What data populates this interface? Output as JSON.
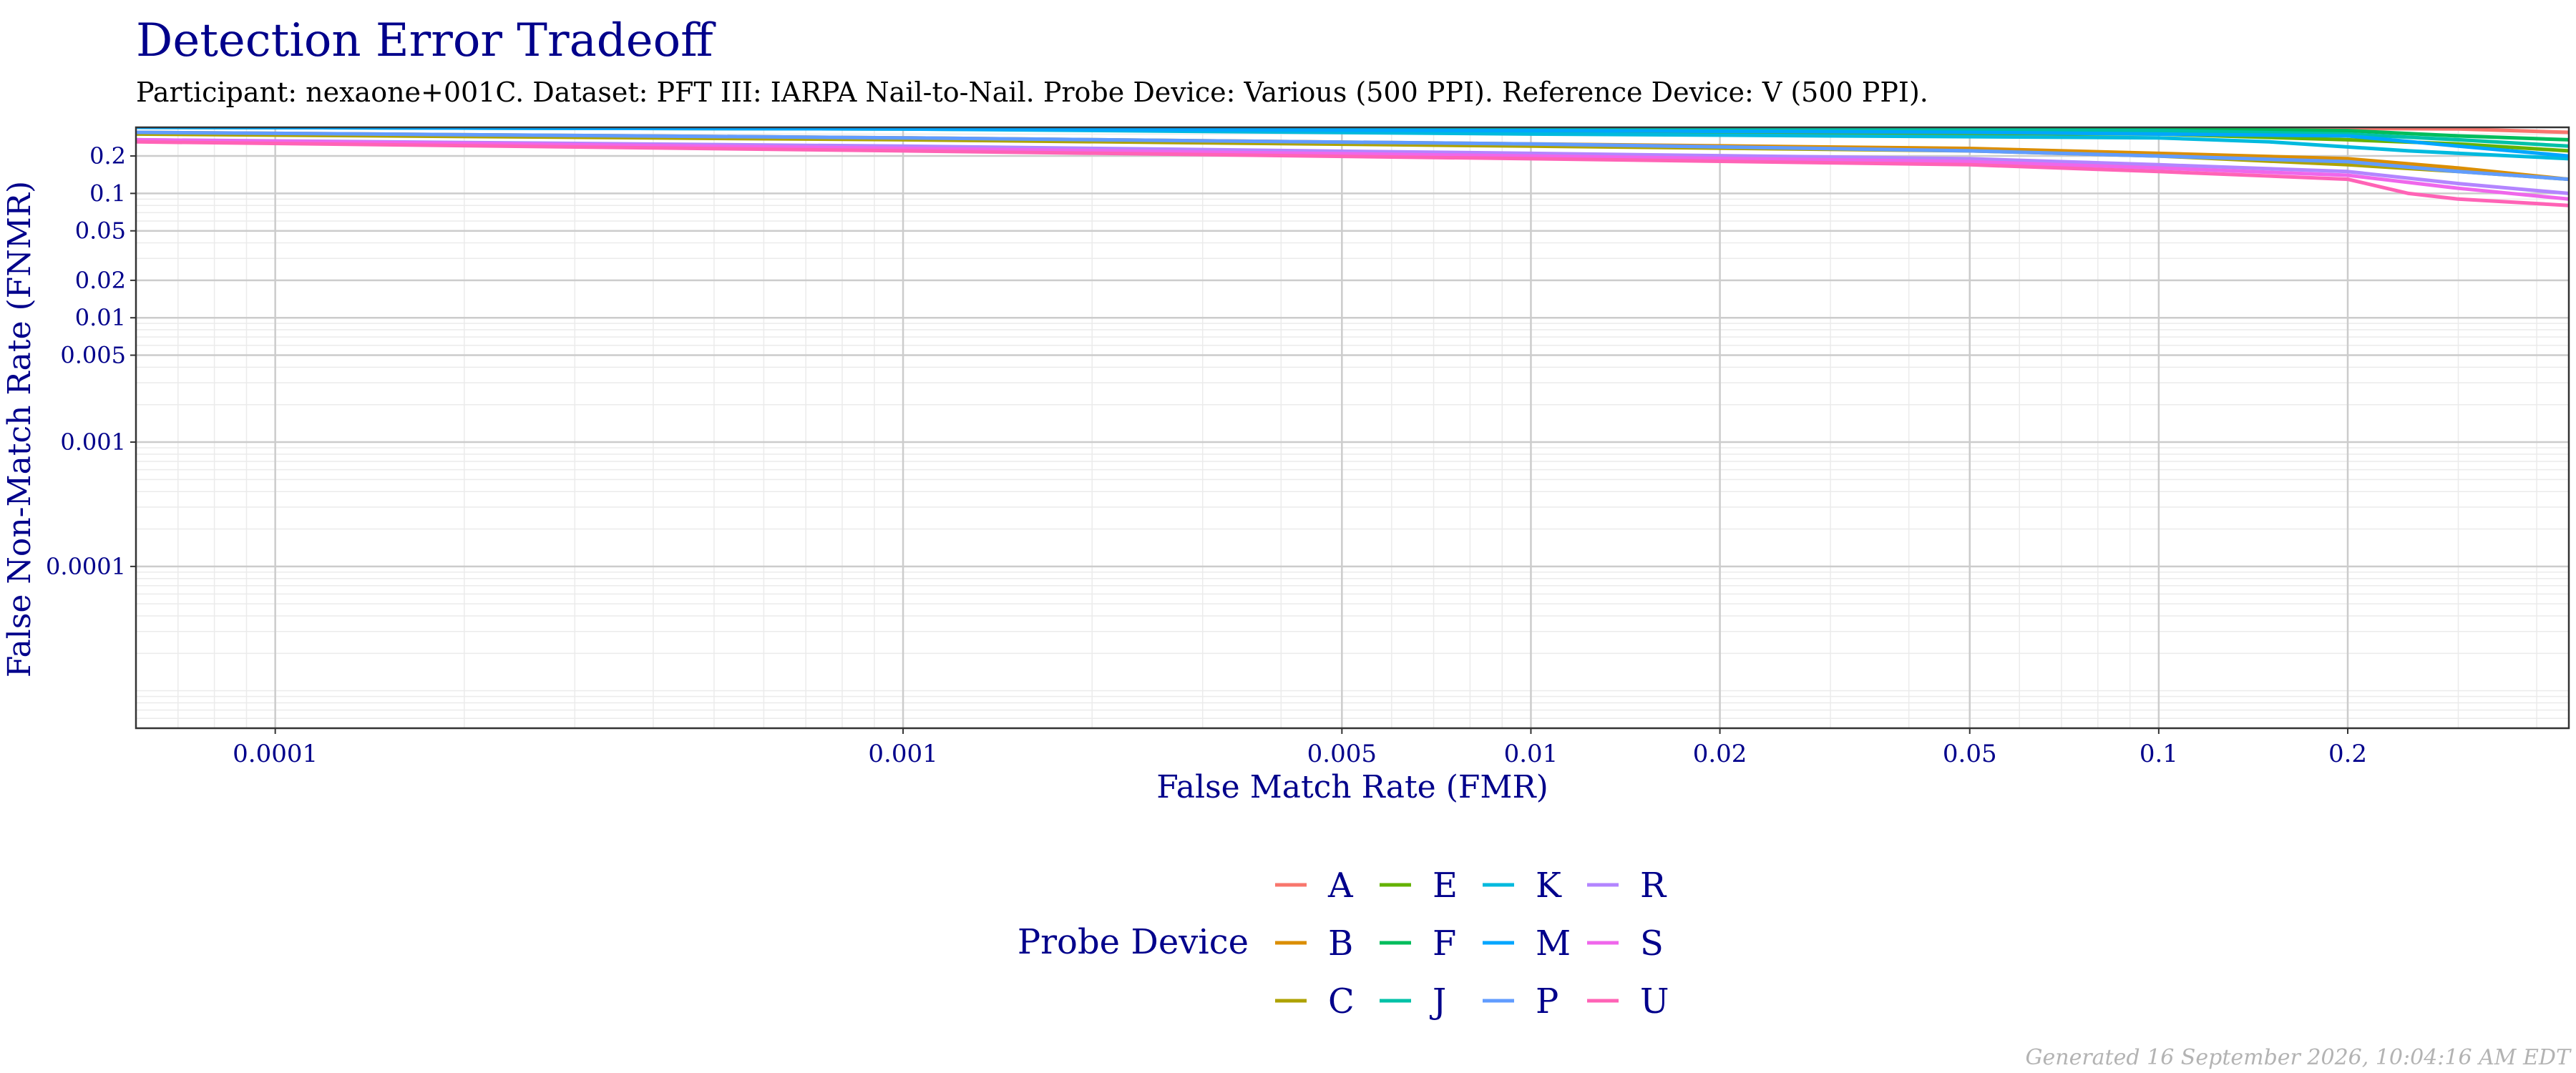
{
  "chart_data": {
    "type": "line",
    "title": "Detection Error Tradeoff",
    "subtitle": "Participant: nexaone+001C. Dataset: PFT III: IARPA Nail-to-Nail. Probe Device: Various (500 PPI). Reference Device: V (500 PPI).",
    "xlabel": "False Match Rate (FMR)",
    "ylabel": "False Non-Match Rate (FNMR)",
    "x_scale": "log",
    "y_scale": "log",
    "xlim": [
      6e-05,
      0.45
    ],
    "ylim": [
      5e-06,
      0.34
    ],
    "x_ticks": [
      0.0001,
      0.001,
      0.005,
      0.01,
      0.02,
      0.05,
      0.1,
      0.2
    ],
    "x_tick_labels": [
      "0.0001",
      "0.001",
      "0.005",
      "0.01",
      "0.02",
      "0.05",
      "0.1",
      "0.2"
    ],
    "y_ticks": [
      0.2,
      0.1,
      0.05,
      0.02,
      0.01,
      0.005,
      0.001,
      0.0001
    ],
    "y_tick_labels": [
      "0.2",
      "0.1",
      "0.05",
      "0.02",
      "0.01",
      "0.005",
      "0.001",
      "0.0001"
    ],
    "grid": true,
    "legend_title": "Probe Device",
    "legend_position": "bottom",
    "series": [
      {
        "name": "A",
        "color": "#F8766D",
        "x": [
          6e-05,
          0.001,
          0.01,
          0.1,
          0.3,
          0.45
        ],
        "y": [
          0.34,
          0.34,
          0.34,
          0.34,
          0.33,
          0.31
        ]
      },
      {
        "name": "B",
        "color": "#DB8E00",
        "x": [
          6e-05,
          0.001,
          0.01,
          0.05,
          0.1,
          0.2,
          0.3,
          0.45
        ],
        "y": [
          0.31,
          0.28,
          0.25,
          0.23,
          0.21,
          0.19,
          0.16,
          0.13
        ]
      },
      {
        "name": "C",
        "color": "#AEA200",
        "x": [
          6e-05,
          0.001,
          0.01,
          0.05,
          0.1,
          0.2,
          0.3,
          0.45
        ],
        "y": [
          0.3,
          0.27,
          0.24,
          0.22,
          0.2,
          0.17,
          0.15,
          0.13
        ]
      },
      {
        "name": "E",
        "color": "#64B200",
        "x": [
          6e-05,
          0.001,
          0.01,
          0.1,
          0.2,
          0.3,
          0.45
        ],
        "y": [
          0.34,
          0.33,
          0.31,
          0.3,
          0.27,
          0.25,
          0.22
        ]
      },
      {
        "name": "F",
        "color": "#00BD5C",
        "x": [
          6e-05,
          0.001,
          0.01,
          0.1,
          0.2,
          0.3,
          0.45
        ],
        "y": [
          0.34,
          0.34,
          0.34,
          0.33,
          0.32,
          0.29,
          0.27
        ]
      },
      {
        "name": "J",
        "color": "#00C1A7",
        "x": [
          6e-05,
          0.001,
          0.01,
          0.1,
          0.2,
          0.3,
          0.45
        ],
        "y": [
          0.34,
          0.34,
          0.33,
          0.32,
          0.3,
          0.27,
          0.24
        ]
      },
      {
        "name": "K",
        "color": "#00BADE",
        "x": [
          6e-05,
          0.001,
          0.01,
          0.1,
          0.15,
          0.25,
          0.45
        ],
        "y": [
          0.34,
          0.33,
          0.3,
          0.28,
          0.26,
          0.22,
          0.19
        ]
      },
      {
        "name": "M",
        "color": "#00A6FF",
        "x": [
          6e-05,
          0.001,
          0.01,
          0.05,
          0.1,
          0.2,
          0.3,
          0.45
        ],
        "y": [
          0.34,
          0.33,
          0.32,
          0.31,
          0.3,
          0.29,
          0.24,
          0.2
        ]
      },
      {
        "name": "P",
        "color": "#619CFF",
        "x": [
          6e-05,
          0.001,
          0.01,
          0.05,
          0.1,
          0.2,
          0.3,
          0.45
        ],
        "y": [
          0.31,
          0.28,
          0.25,
          0.22,
          0.2,
          0.18,
          0.15,
          0.13
        ]
      },
      {
        "name": "R",
        "color": "#B385FF",
        "x": [
          6e-05,
          0.001,
          0.01,
          0.05,
          0.1,
          0.2,
          0.3,
          0.45
        ],
        "y": [
          0.27,
          0.24,
          0.21,
          0.19,
          0.17,
          0.15,
          0.12,
          0.1
        ]
      },
      {
        "name": "S",
        "color": "#EF67EB",
        "x": [
          6e-05,
          0.001,
          0.01,
          0.05,
          0.1,
          0.2,
          0.3,
          0.45
        ],
        "y": [
          0.27,
          0.23,
          0.2,
          0.18,
          0.16,
          0.14,
          0.11,
          0.09
        ]
      },
      {
        "name": "U",
        "color": "#FF63B6",
        "x": [
          6e-05,
          0.001,
          0.01,
          0.05,
          0.1,
          0.2,
          0.25,
          0.3,
          0.45
        ],
        "y": [
          0.26,
          0.22,
          0.19,
          0.17,
          0.15,
          0.13,
          0.1,
          0.09,
          0.08
        ]
      }
    ]
  },
  "footer": "Generated 16 September 2026, 10:04:16 AM EDT"
}
